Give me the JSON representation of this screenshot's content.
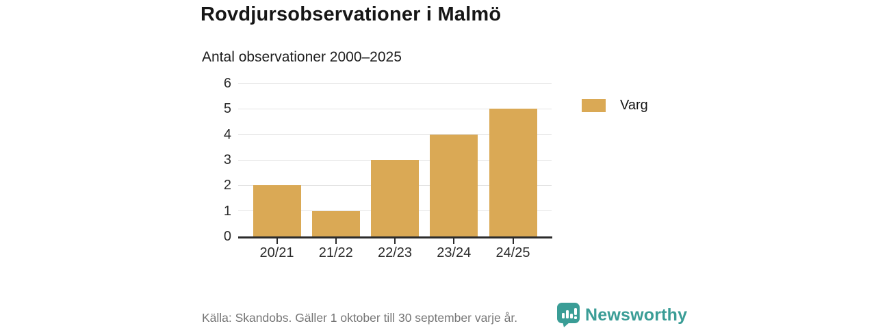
{
  "header": {
    "title": "Rovdjursobservationer i Malmö",
    "subtitle": "Antal observationer 2000–2025"
  },
  "chart_data": {
    "type": "bar",
    "title": "Rovdjursobservationer i Malmö",
    "subtitle": "Antal observationer 2000–2025",
    "categories": [
      "20/21",
      "21/22",
      "22/23",
      "23/24",
      "24/25"
    ],
    "series": [
      {
        "name": "Varg",
        "values": [
          2,
          1,
          3,
          4,
          5
        ],
        "color": "#DAA955"
      }
    ],
    "ylim": [
      0,
      6
    ],
    "yticks": [
      0,
      1,
      2,
      3,
      4,
      5,
      6
    ],
    "grid": true,
    "legend_position": "right"
  },
  "legend": {
    "items": [
      {
        "label": "Varg",
        "color": "#DAA955"
      }
    ]
  },
  "footer": {
    "source": "Källa: Skandobs. Gäller 1 oktober till 30 september varje år.",
    "brand": "Newsworthy"
  },
  "colors": {
    "bar": "#DAA955",
    "brand_teal": "#3A9D96",
    "axis": "#2B2B2B",
    "grid": "#E3E3E3",
    "text": "#161616",
    "muted": "#757575"
  }
}
